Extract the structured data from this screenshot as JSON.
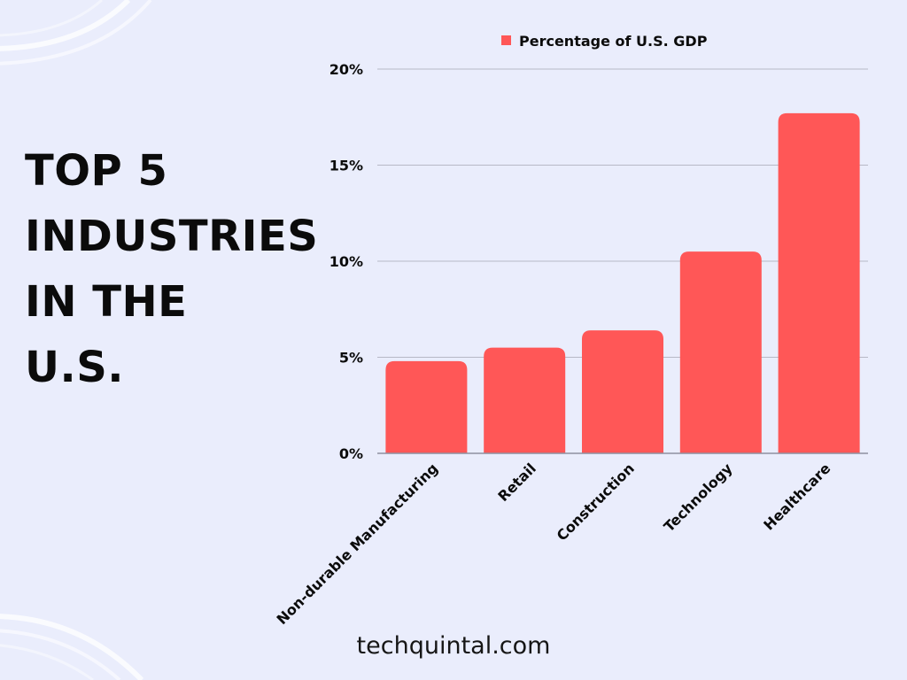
{
  "page": {
    "title_lines": [
      "TOP 5",
      "INDUSTRIES",
      "IN THE",
      "U.S."
    ],
    "footer": "techquintal.com"
  },
  "colors": {
    "background": "#EAEDFC",
    "bar": "#FF5757",
    "gridline": "#B7B9C6",
    "text": "#0B0B0B"
  },
  "chart_data": {
    "type": "bar",
    "title": "",
    "categories": [
      "Non-durable Manufacturing",
      "Retail",
      "Construction",
      "Technology",
      "Healthcare"
    ],
    "series": [
      {
        "name": "Percentage of U.S. GDP",
        "values": [
          4.8,
          5.5,
          6.4,
          10.5,
          17.7
        ]
      }
    ],
    "xlabel": "",
    "ylabel": "",
    "ylim": [
      0,
      20
    ],
    "yticks": [
      0,
      5,
      10,
      15,
      20
    ],
    "ytick_labels": [
      "0%",
      "5%",
      "10%",
      "15%",
      "20%"
    ],
    "grid": true,
    "legend_position": "top"
  }
}
